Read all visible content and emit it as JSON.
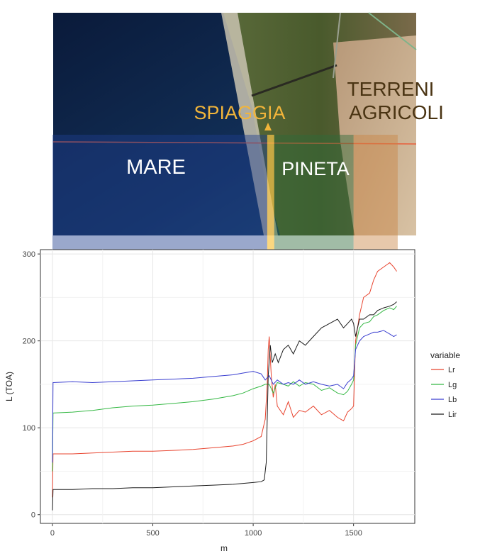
{
  "image_labels": {
    "mare": "MARE",
    "pineta": "PINETA",
    "spiaggia": "SPIAGGIA",
    "terreni": [
      "TERRENI",
      "AGRICOLI"
    ]
  },
  "zone_colors": {
    "mare": "#1e3f8f",
    "beach": "#f9c64a",
    "pineta": "#2e6b3a",
    "terreni": "#c98645",
    "spiaggia_text": "#f2b53a",
    "terreni_text": "#4a3413"
  },
  "zones": [
    {
      "name": "mare",
      "x": [
        0,
        1070
      ]
    },
    {
      "name": "beach",
      "x": [
        1070,
        1105
      ]
    },
    {
      "name": "pineta",
      "x": [
        1105,
        1500
      ]
    },
    {
      "name": "terreni",
      "x": [
        1500,
        1720
      ]
    }
  ],
  "chart_data": {
    "type": "line",
    "xlabel": "m",
    "ylabel": "L (TOA)",
    "xlim": [
      -60,
      1805
    ],
    "ylim": [
      -10,
      305
    ],
    "xticks": [
      0,
      500,
      1000,
      1500
    ],
    "yticks": [
      0,
      100,
      200,
      300
    ],
    "grid": true,
    "legend": {
      "title": "variable",
      "position": "right"
    },
    "series": [
      {
        "name": "Lr",
        "color": "#e8442f",
        "points": [
          [
            0,
            20
          ],
          [
            3,
            70
          ],
          [
            100,
            70
          ],
          [
            200,
            71
          ],
          [
            300,
            72
          ],
          [
            400,
            73
          ],
          [
            500,
            73
          ],
          [
            600,
            74
          ],
          [
            700,
            75
          ],
          [
            800,
            77
          ],
          [
            900,
            79
          ],
          [
            950,
            81
          ],
          [
            1000,
            85
          ],
          [
            1040,
            90
          ],
          [
            1060,
            110
          ],
          [
            1070,
            150
          ],
          [
            1075,
            190
          ],
          [
            1080,
            205
          ],
          [
            1090,
            160
          ],
          [
            1100,
            135
          ],
          [
            1110,
            150
          ],
          [
            1120,
            125
          ],
          [
            1150,
            115
          ],
          [
            1175,
            130
          ],
          [
            1200,
            112
          ],
          [
            1230,
            120
          ],
          [
            1260,
            118
          ],
          [
            1300,
            125
          ],
          [
            1340,
            115
          ],
          [
            1380,
            120
          ],
          [
            1420,
            112
          ],
          [
            1450,
            108
          ],
          [
            1470,
            118
          ],
          [
            1490,
            122
          ],
          [
            1500,
            125
          ],
          [
            1510,
            200
          ],
          [
            1530,
            230
          ],
          [
            1550,
            250
          ],
          [
            1580,
            255
          ],
          [
            1600,
            270
          ],
          [
            1620,
            280
          ],
          [
            1650,
            285
          ],
          [
            1680,
            290
          ],
          [
            1700,
            285
          ],
          [
            1715,
            280
          ]
        ]
      },
      {
        "name": "Lg",
        "color": "#35b844",
        "points": [
          [
            0,
            50
          ],
          [
            3,
            117
          ],
          [
            100,
            118
          ],
          [
            200,
            120
          ],
          [
            300,
            123
          ],
          [
            400,
            125
          ],
          [
            500,
            126
          ],
          [
            600,
            128
          ],
          [
            700,
            130
          ],
          [
            800,
            133
          ],
          [
            900,
            137
          ],
          [
            950,
            140
          ],
          [
            1000,
            145
          ],
          [
            1040,
            148
          ],
          [
            1060,
            150
          ],
          [
            1080,
            150
          ],
          [
            1100,
            140
          ],
          [
            1120,
            152
          ],
          [
            1150,
            150
          ],
          [
            1175,
            148
          ],
          [
            1200,
            153
          ],
          [
            1230,
            148
          ],
          [
            1260,
            152
          ],
          [
            1300,
            150
          ],
          [
            1340,
            143
          ],
          [
            1380,
            146
          ],
          [
            1420,
            140
          ],
          [
            1450,
            138
          ],
          [
            1470,
            142
          ],
          [
            1490,
            150
          ],
          [
            1500,
            155
          ],
          [
            1510,
            195
          ],
          [
            1530,
            215
          ],
          [
            1550,
            220
          ],
          [
            1580,
            222
          ],
          [
            1600,
            228
          ],
          [
            1620,
            230
          ],
          [
            1650,
            235
          ],
          [
            1680,
            238
          ],
          [
            1700,
            236
          ],
          [
            1715,
            240
          ]
        ]
      },
      {
        "name": "Lb",
        "color": "#3a3fd0",
        "points": [
          [
            0,
            60
          ],
          [
            3,
            152
          ],
          [
            100,
            153
          ],
          [
            200,
            152
          ],
          [
            300,
            153
          ],
          [
            400,
            154
          ],
          [
            500,
            155
          ],
          [
            600,
            156
          ],
          [
            700,
            157
          ],
          [
            800,
            159
          ],
          [
            900,
            161
          ],
          [
            950,
            163
          ],
          [
            1000,
            165
          ],
          [
            1040,
            162
          ],
          [
            1060,
            155
          ],
          [
            1080,
            160
          ],
          [
            1100,
            150
          ],
          [
            1120,
            155
          ],
          [
            1150,
            150
          ],
          [
            1175,
            152
          ],
          [
            1200,
            150
          ],
          [
            1230,
            155
          ],
          [
            1260,
            150
          ],
          [
            1300,
            153
          ],
          [
            1340,
            150
          ],
          [
            1380,
            148
          ],
          [
            1420,
            150
          ],
          [
            1450,
            145
          ],
          [
            1470,
            152
          ],
          [
            1490,
            156
          ],
          [
            1500,
            160
          ],
          [
            1510,
            190
          ],
          [
            1530,
            200
          ],
          [
            1550,
            205
          ],
          [
            1580,
            208
          ],
          [
            1600,
            210
          ],
          [
            1620,
            210
          ],
          [
            1650,
            212
          ],
          [
            1680,
            208
          ],
          [
            1700,
            205
          ],
          [
            1715,
            207
          ]
        ]
      },
      {
        "name": "Lir",
        "color": "#1a1a1a",
        "points": [
          [
            0,
            5
          ],
          [
            3,
            29
          ],
          [
            100,
            29
          ],
          [
            200,
            30
          ],
          [
            300,
            30
          ],
          [
            400,
            31
          ],
          [
            500,
            31
          ],
          [
            600,
            32
          ],
          [
            700,
            33
          ],
          [
            800,
            34
          ],
          [
            900,
            35
          ],
          [
            950,
            36
          ],
          [
            1000,
            37
          ],
          [
            1040,
            38
          ],
          [
            1055,
            40
          ],
          [
            1065,
            60
          ],
          [
            1075,
            160
          ],
          [
            1085,
            195
          ],
          [
            1095,
            175
          ],
          [
            1110,
            185
          ],
          [
            1125,
            175
          ],
          [
            1150,
            190
          ],
          [
            1175,
            195
          ],
          [
            1200,
            185
          ],
          [
            1230,
            200
          ],
          [
            1260,
            195
          ],
          [
            1300,
            205
          ],
          [
            1340,
            215
          ],
          [
            1380,
            220
          ],
          [
            1420,
            225
          ],
          [
            1450,
            215
          ],
          [
            1470,
            220
          ],
          [
            1490,
            225
          ],
          [
            1500,
            220
          ],
          [
            1510,
            205
          ],
          [
            1530,
            225
          ],
          [
            1550,
            225
          ],
          [
            1580,
            230
          ],
          [
            1600,
            230
          ],
          [
            1620,
            235
          ],
          [
            1650,
            238
          ],
          [
            1680,
            240
          ],
          [
            1700,
            242
          ],
          [
            1715,
            245
          ]
        ]
      }
    ]
  }
}
